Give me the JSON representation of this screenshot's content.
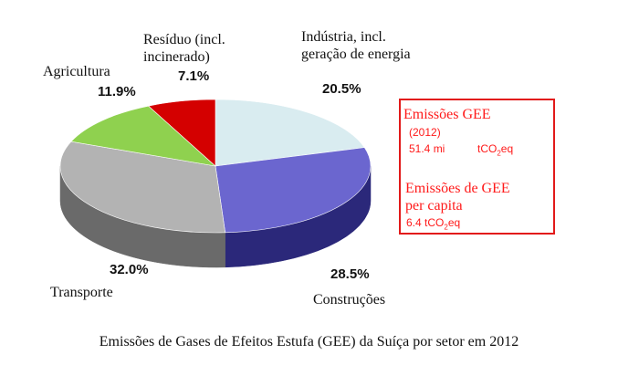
{
  "chart_data": {
    "type": "pie",
    "title": "",
    "slices": [
      {
        "name": "Indústria, incl. geração de energia",
        "name_lines": [
          "Indústria, incl.",
          "geração de energia"
        ],
        "value": 20.5,
        "label": "20.5%",
        "color": "#d9ecf0",
        "side": "#a9c2c8"
      },
      {
        "name": "Construções",
        "name_lines": [
          "Construções"
        ],
        "value": 28.5,
        "label": "28.5%",
        "color": "#6b66cf",
        "side": "#2b287a"
      },
      {
        "name": "Transporte",
        "name_lines": [
          "Transporte"
        ],
        "value": 32.0,
        "label": "32.0%",
        "color": "#b3b3b3",
        "side": "#6a6a6a"
      },
      {
        "name": "Agricultura",
        "name_lines": [
          "Agricultura"
        ],
        "value": 11.9,
        "label": "11.9%",
        "color": "#8fd14f",
        "side": "#5b8f2a"
      },
      {
        "name": "Resíduo (incl. incinerado)",
        "name_lines": [
          "Resíduo (incl.",
          "incinerado)"
        ],
        "value": 7.1,
        "label": "7.1%",
        "color": "#d40000",
        "side": "#8a0000"
      }
    ],
    "legend": "none",
    "grid": false
  },
  "info_box": {
    "title": "Emissões GEE",
    "year": "(2012)",
    "total_value": "51.4 mi",
    "unit_prefix": "tCO",
    "unit_sub": "2",
    "unit_suffix": "eq",
    "per_capita_line1": "Emissões de GEE",
    "per_capita_line2": "per capita",
    "per_capita_value": "6.4 tCO",
    "per_capita_sub": "2",
    "per_capita_suffix": "eq",
    "color": "#ff1a1a"
  },
  "caption": "Emissões de Gases de Efeitos Estufa (GEE) da Suíça por setor em 2012"
}
